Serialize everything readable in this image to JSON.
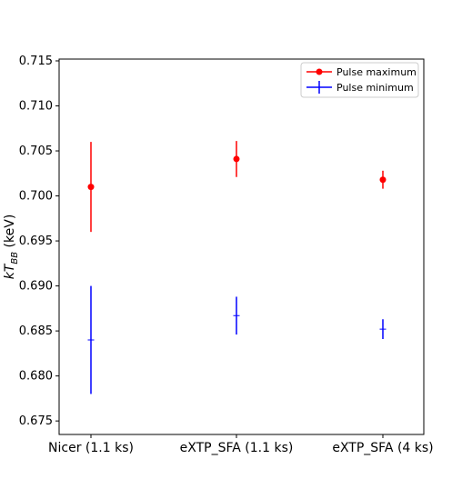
{
  "chart_data": {
    "type": "scatter",
    "title": "",
    "xlabel": "",
    "ylabel": {
      "prefix": "kT",
      "subscript": "BB",
      "suffix": " (keV)"
    },
    "categories": [
      "Nicer (1.1 ks)",
      "eXTP_SFA (1.1 ks)",
      "eXTP_SFA (4 ks)"
    ],
    "ylim": [
      0.6735,
      0.7152
    ],
    "yticks": [
      "0.675",
      "0.680",
      "0.685",
      "0.690",
      "0.695",
      "0.700",
      "0.705",
      "0.710",
      "0.715"
    ],
    "grid": false,
    "legend_position": "top-right",
    "series": [
      {
        "name": "Pulse maximum",
        "color": "#ff0000",
        "marker": "filled-circle",
        "values": [
          0.701,
          0.7041,
          0.7018
        ],
        "errors": [
          0.005,
          0.002,
          0.001
        ]
      },
      {
        "name": "Pulse minimum",
        "color": "#0000ff",
        "marker": "tick",
        "values": [
          0.684,
          0.6867,
          0.6852
        ],
        "errors": [
          0.006,
          0.0021,
          0.0011
        ]
      }
    ]
  }
}
